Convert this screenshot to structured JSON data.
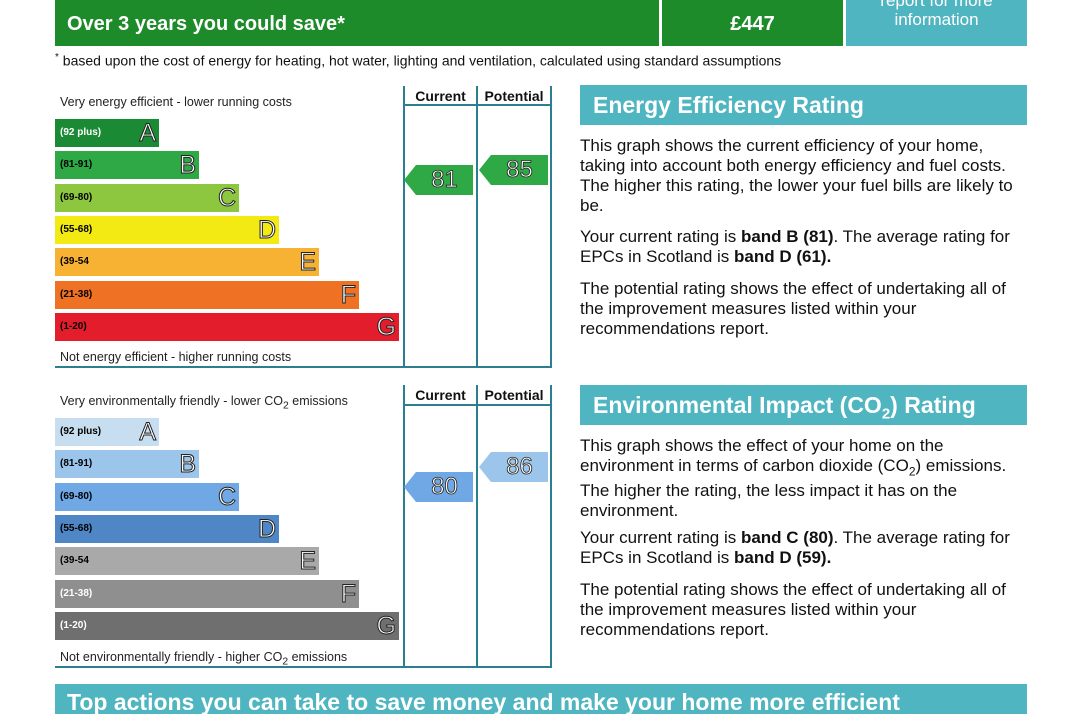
{
  "banner": {
    "savings_label": "Over 3 years you could save*",
    "savings_value": "£447",
    "report_line1": "report for more",
    "report_line2": "information"
  },
  "footnote": "based upon the cost of energy for heating, hot water, lighting and ventilation, calculated using standard assumptions",
  "energy_chart": {
    "top_caption": "Very energy efficient - lower running costs",
    "bottom_caption": "Not energy efficient - higher running costs",
    "col_current": "Current",
    "col_potential": "Potential",
    "current": "81",
    "potential": "85",
    "bands": [
      {
        "range": "(92 plus)",
        "letter": "A",
        "color": "#1b8a35",
        "text_color": "#ffffff"
      },
      {
        "range": "(81-91)",
        "letter": "B",
        "color": "#2fa846",
        "text_color": "#000000"
      },
      {
        "range": "(69-80)",
        "letter": "C",
        "color": "#8dc63f",
        "text_color": "#000000"
      },
      {
        "range": "(55-68)",
        "letter": "D",
        "color": "#f2ea12",
        "text_color": "#000000"
      },
      {
        "range": "(39-54",
        "letter": "E",
        "color": "#f7b233",
        "text_color": "#000000"
      },
      {
        "range": "(21-38)",
        "letter": "F",
        "color": "#ef7124",
        "text_color": "#000000"
      },
      {
        "range": "(1-20)",
        "letter": "G",
        "color": "#e31d2b",
        "text_color": "#000000"
      }
    ],
    "current_color": "#2fa846",
    "potential_color": "#2fa846"
  },
  "env_chart": {
    "top_caption_pre": "Very environmentally friendly - lower CO",
    "top_caption_sub": "2",
    "top_caption_post": " emissions",
    "bottom_caption_pre": "Not environmentally friendly - higher CO",
    "bottom_caption_sub": "2",
    "bottom_caption_post": " emissions",
    "col_current": "Current",
    "col_potential": "Potential",
    "current": "80",
    "potential": "86",
    "bands": [
      {
        "range": "(92 plus)",
        "letter": "A",
        "color": "#c6def0",
        "text_color": "#000000"
      },
      {
        "range": "(81-91)",
        "letter": "B",
        "color": "#9cc5ec",
        "text_color": "#000000"
      },
      {
        "range": "(69-80)",
        "letter": "C",
        "color": "#6fa8e4",
        "text_color": "#000000"
      },
      {
        "range": "(55-68)",
        "letter": "D",
        "color": "#4f86c6",
        "text_color": "#000000"
      },
      {
        "range": "(39-54",
        "letter": "E",
        "color": "#a9a9a9",
        "text_color": "#000000"
      },
      {
        "range": "(21-38)",
        "letter": "F",
        "color": "#8f8f8f",
        "text_color": "#ffffff"
      },
      {
        "range": "(1-20)",
        "letter": "G",
        "color": "#6f6f6f",
        "text_color": "#ffffff"
      }
    ],
    "current_color": "#6fa8e4",
    "potential_color": "#9cc5ec"
  },
  "energy_section": {
    "title": "Energy Efficiency Rating",
    "p1": "This graph shows the current efficiency of your home, taking into account both energy efficiency and fuel costs. The higher this rating, the lower your fuel bills are likely to be.",
    "p2_a": "Your current rating is ",
    "p2_b": "band B (81)",
    "p2_c": ". The average rating for EPCs in Scotland is ",
    "p2_d": "band D (61).",
    "p3": "The potential rating shows the effect of undertaking all of the improvement measures listed within your recommendations report."
  },
  "env_section": {
    "title_pre": "Environmental Impact (CO",
    "title_sub": "2",
    "title_post": ") Rating",
    "p1_a": "This graph shows the effect of your home on the environment in terms of carbon dioxide (CO",
    "p1_sub": "2",
    "p1_b": ") emissions. The higher the rating, the less impact it has on the environment.",
    "p2_a": "Your current rating is ",
    "p2_b": "band C (80)",
    "p2_c": ". The average rating for EPCs in Scotland is ",
    "p2_d": "band D (59).",
    "p3": "The potential rating shows the effect of undertaking all of the improvement measures listed within your recommendations report."
  },
  "bottom_bar": "Top actions you can take to save money and make your home more efficient"
}
